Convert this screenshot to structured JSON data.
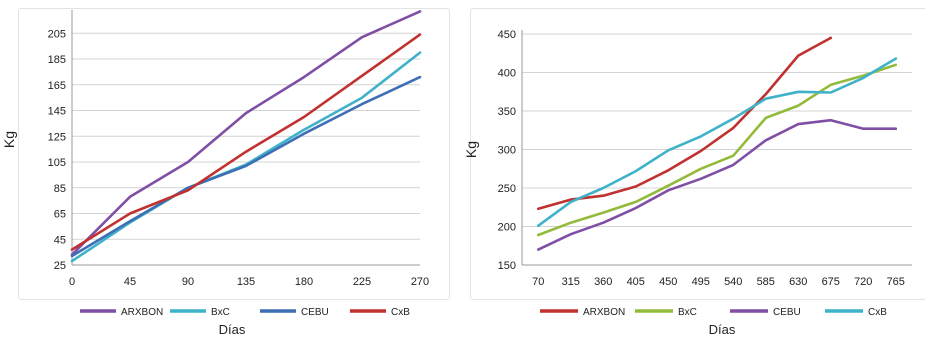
{
  "chart_data": [
    {
      "type": "line",
      "title": "",
      "xlabel": "Días",
      "ylabel": "Kg",
      "x": [
        0,
        45,
        90,
        135,
        180,
        225,
        270
      ],
      "y_ticks": [
        25,
        45,
        65,
        85,
        105,
        125,
        145,
        165,
        185,
        205
      ],
      "ylim": [
        25,
        220
      ],
      "grid": true,
      "legend": "bottom",
      "series": [
        {
          "name": "ARXBON",
          "color": "#7f4fa6",
          "x": [
            0,
            45,
            90,
            135,
            180,
            225,
            270
          ],
          "values": [
            33,
            78,
            105,
            143,
            171,
            202,
            222
          ]
        },
        {
          "name": "BxC",
          "color": "#3fb2c9",
          "x": [
            0,
            45,
            90,
            135,
            180,
            225,
            270
          ],
          "values": [
            28,
            58,
            85,
            103,
            130,
            155,
            190
          ]
        },
        {
          "name": "CEBU",
          "color": "#3e6fb5",
          "x": [
            0,
            45,
            90,
            135,
            180,
            225,
            270
          ],
          "values": [
            32,
            59,
            85,
            102,
            127,
            150,
            171
          ]
        },
        {
          "name": "CxB",
          "color": "#c0312f",
          "x": [
            0,
            45,
            90,
            135,
            180,
            225,
            270
          ],
          "values": [
            37,
            65,
            83,
            113,
            140,
            172,
            204
          ]
        }
      ]
    },
    {
      "type": "line",
      "title": "",
      "xlabel": "Días",
      "ylabel": "Kg",
      "categories": [
        "70",
        "315",
        "360",
        "405",
        "450",
        "495",
        "540",
        "585",
        "630",
        "675",
        "720",
        "765"
      ],
      "y_ticks": [
        150,
        200,
        250,
        300,
        350,
        400,
        450
      ],
      "ylim": [
        150,
        450
      ],
      "grid": true,
      "legend": "bottom",
      "series": [
        {
          "name": "ARXBON",
          "color": "#c0312f",
          "values": [
            223,
            235,
            240,
            252,
            273,
            298,
            328,
            372,
            422,
            445,
            null,
            null
          ]
        },
        {
          "name": "BxC",
          "color": "#93bb3b",
          "values": [
            189,
            205,
            218,
            232,
            253,
            275,
            292,
            341,
            357,
            384,
            396,
            410
          ]
        },
        {
          "name": "CEBU",
          "color": "#7f4fa6",
          "values": [
            170,
            190,
            205,
            224,
            247,
            262,
            280,
            312,
            333,
            338,
            327,
            327
          ]
        },
        {
          "name": "CxB",
          "color": "#3fb2c9",
          "values": [
            201,
            232,
            250,
            272,
            299,
            317,
            340,
            366,
            375,
            374,
            393,
            418
          ]
        }
      ]
    }
  ]
}
